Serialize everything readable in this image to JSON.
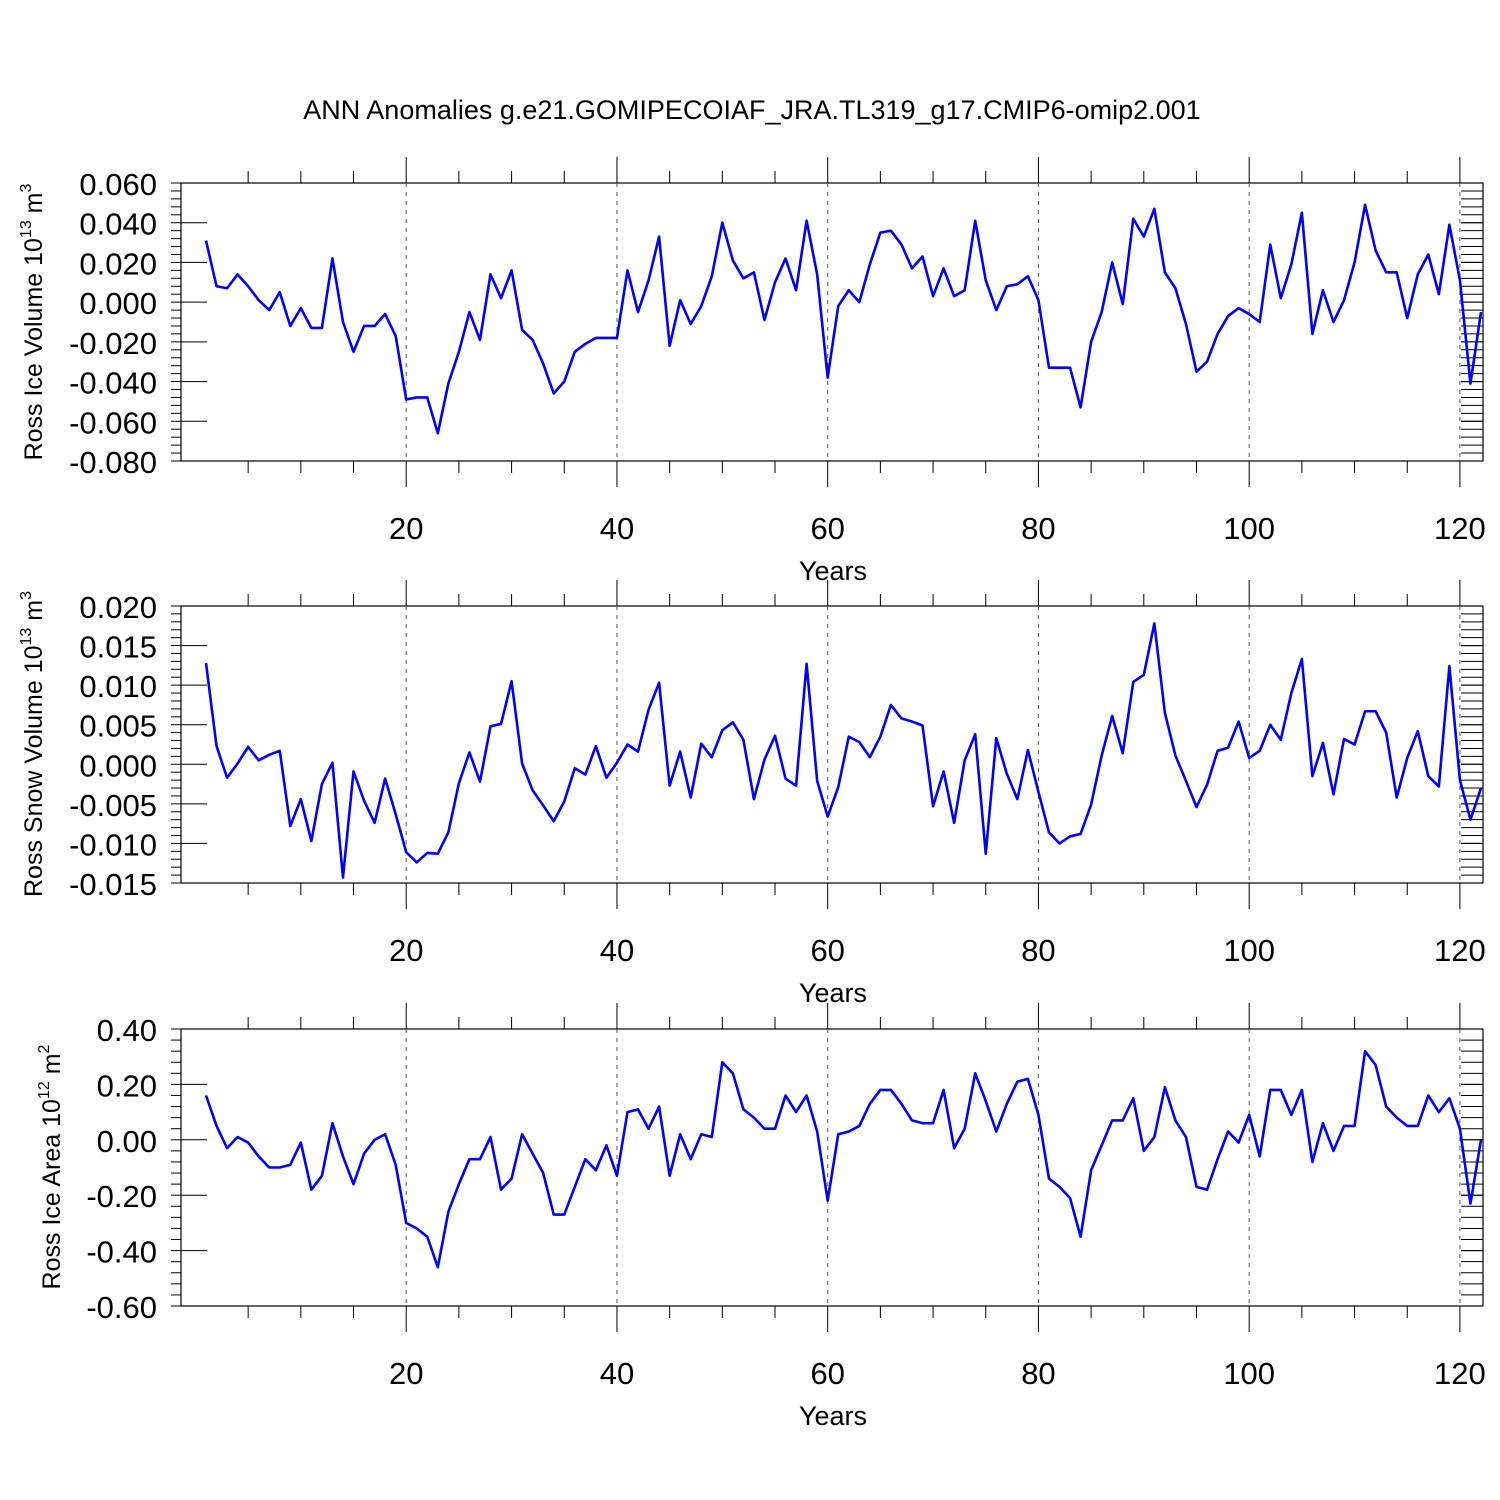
{
  "title": "ANN Anomalies g.e21.GOMIPECOIAF_JRA.TL319_g17.CMIP6-omip2.001",
  "colors": {
    "line": "#0000ff",
    "axis": "#000000",
    "grid": "#555555"
  },
  "chart_data": [
    {
      "type": "line",
      "name": "ross-ice-volume",
      "ylabel_main": "Ross Ice Volume 10",
      "ylabel_exp": "13",
      "ylabel_unit": " m",
      "ylabel_unit_exp": "3",
      "xlabel": "Years",
      "xlim": [
        1,
        122
      ],
      "ylim": [
        -0.08,
        0.06
      ],
      "xticks": [
        20,
        40,
        60,
        80,
        100,
        120
      ],
      "xtick_labels": [
        "20",
        "40",
        "60",
        "80",
        "100",
        "120"
      ],
      "yticks": [
        0.06,
        0.04,
        0.02,
        0.0,
        -0.02,
        -0.04,
        -0.06,
        -0.08
      ],
      "ytick_labels": [
        "0.060",
        "0.040",
        "0.020",
        "0.000",
        "-0.020",
        "-0.040",
        "-0.060",
        "-0.080"
      ],
      "grid_x": [
        20,
        40,
        60,
        80,
        100,
        120
      ],
      "series": [
        {
          "name": "Ross Ice Volume",
          "color": "#0000ff",
          "values": [
            0.031,
            0.008,
            0.007,
            0.014,
            0.008,
            0.001,
            -0.004,
            0.005,
            -0.012,
            -0.003,
            -0.013,
            -0.013,
            0.022,
            -0.01,
            -0.025,
            -0.012,
            -0.012,
            -0.006,
            -0.017,
            -0.049,
            -0.048,
            -0.048,
            -0.066,
            -0.041,
            -0.025,
            -0.005,
            -0.019,
            0.014,
            0.002,
            0.016,
            -0.014,
            -0.019,
            -0.031,
            -0.046,
            -0.04,
            -0.025,
            -0.021,
            -0.018,
            -0.018,
            -0.018,
            0.016,
            -0.005,
            0.011,
            0.033,
            -0.022,
            0.001,
            -0.011,
            -0.002,
            0.013,
            0.04,
            0.021,
            0.012,
            0.015,
            -0.009,
            0.01,
            0.022,
            0.006,
            0.041,
            0.014,
            -0.038,
            -0.002,
            0.006,
            0.0,
            0.019,
            0.035,
            0.036,
            0.029,
            0.017,
            0.023,
            0.003,
            0.017,
            0.003,
            0.006,
            0.041,
            0.011,
            -0.004,
            0.008,
            0.009,
            0.013,
            0.001,
            -0.033,
            -0.033,
            -0.033,
            -0.053,
            -0.02,
            -0.005,
            0.02,
            -0.001,
            0.042,
            0.033,
            0.047,
            0.015,
            0.007,
            -0.011,
            -0.035,
            -0.03,
            -0.016,
            -0.007,
            -0.003,
            -0.006,
            -0.01,
            0.029,
            0.002,
            0.019,
            0.045,
            -0.016,
            0.006,
            -0.01,
            0.001,
            0.02,
            0.049,
            0.026,
            0.015,
            0.015,
            -0.008,
            0.014,
            0.024,
            0.004,
            0.039,
            0.011,
            -0.041,
            -0.005
          ]
        }
      ]
    },
    {
      "type": "line",
      "name": "ross-snow-volume",
      "ylabel_main": "Ross Snow Volume 10",
      "ylabel_exp": "13",
      "ylabel_unit": " m",
      "ylabel_unit_exp": "3",
      "xlabel": "Years",
      "xlim": [
        1,
        122
      ],
      "ylim": [
        -0.015,
        0.02
      ],
      "xticks": [
        20,
        40,
        60,
        80,
        100,
        120
      ],
      "xtick_labels": [
        "20",
        "40",
        "60",
        "80",
        "100",
        "120"
      ],
      "yticks": [
        0.02,
        0.015,
        0.01,
        0.005,
        0.0,
        -0.005,
        -0.01,
        -0.015
      ],
      "ytick_labels": [
        "0.020",
        "0.015",
        "0.010",
        "0.005",
        "0.000",
        "-0.005",
        "-0.010",
        "-0.015"
      ],
      "grid_x": [
        20,
        40,
        60,
        80,
        100,
        120
      ],
      "series": [
        {
          "name": "Ross Snow Volume",
          "color": "#0000ff",
          "values": [
            0.0128,
            0.0023,
            -0.0017,
            0.0001,
            0.0022,
            0.0005,
            0.0012,
            0.0017,
            -0.0078,
            -0.0044,
            -0.0097,
            -0.0025,
            0.0002,
            -0.0143,
            -0.0009,
            -0.0046,
            -0.0074,
            -0.0018,
            -0.0063,
            -0.0111,
            -0.0124,
            -0.0112,
            -0.0113,
            -0.0086,
            -0.0024,
            0.0015,
            -0.0022,
            0.0048,
            0.0051,
            0.0105,
            0.0001,
            -0.0033,
            -0.0052,
            -0.0072,
            -0.0047,
            -0.0005,
            -0.0013,
            0.0023,
            -0.0017,
            0.0002,
            0.0025,
            0.0016,
            0.0069,
            0.0103,
            -0.0027,
            0.0016,
            -0.0042,
            0.0026,
            0.0009,
            0.0043,
            0.0053,
            0.0031,
            -0.0044,
            0.0006,
            0.0036,
            -0.0018,
            -0.0027,
            0.0127,
            -0.0021,
            -0.0066,
            -0.0029,
            0.0035,
            0.0028,
            0.0009,
            0.0035,
            0.0075,
            0.0058,
            0.0054,
            0.0049,
            -0.0053,
            -0.0009,
            -0.0074,
            0.0005,
            0.0038,
            -0.0113,
            0.0033,
            -0.0012,
            -0.0044,
            0.0018,
            -0.0035,
            -0.0086,
            -0.01,
            -0.0091,
            -0.0088,
            -0.0051,
            0.0011,
            0.0061,
            0.0014,
            0.0104,
            0.0113,
            0.0178,
            0.0065,
            0.0011,
            -0.0021,
            -0.0054,
            -0.0026,
            0.0017,
            0.0021,
            0.0054,
            0.0008,
            0.0017,
            0.005,
            0.0031,
            0.009,
            0.0133,
            -0.0015,
            0.0027,
            -0.0038,
            0.0032,
            0.0025,
            0.0067,
            0.0067,
            0.004,
            -0.0042,
            0.0008,
            0.0042,
            -0.0015,
            -0.0028,
            0.0124,
            -0.002,
            -0.007,
            -0.003
          ]
        }
      ]
    },
    {
      "type": "line",
      "name": "ross-ice-area",
      "ylabel_main": "Ross Ice Area 10",
      "ylabel_exp": "12",
      "ylabel_unit": " m",
      "ylabel_unit_exp": "2",
      "xlabel": "Years",
      "xlim": [
        1,
        122
      ],
      "ylim": [
        -0.6,
        0.4
      ],
      "xticks": [
        20,
        40,
        60,
        80,
        100,
        120
      ],
      "xtick_labels": [
        "20",
        "40",
        "60",
        "80",
        "100",
        "120"
      ],
      "yticks": [
        0.4,
        0.2,
        0.0,
        -0.2,
        -0.4,
        -0.6
      ],
      "ytick_labels": [
        "0.40",
        "0.20",
        "0.00",
        "-0.20",
        "-0.40",
        "-0.60"
      ],
      "grid_x": [
        20,
        40,
        60,
        80,
        100,
        120
      ],
      "series": [
        {
          "name": "Ross Ice Area",
          "color": "#0000ff",
          "values": [
            0.16,
            0.05,
            -0.03,
            0.01,
            -0.01,
            -0.06,
            -0.1,
            -0.1,
            -0.09,
            -0.01,
            -0.18,
            -0.13,
            0.06,
            -0.06,
            -0.16,
            -0.05,
            0.0,
            0.02,
            -0.09,
            -0.3,
            -0.32,
            -0.35,
            -0.46,
            -0.26,
            -0.16,
            -0.07,
            -0.07,
            0.01,
            -0.18,
            -0.14,
            0.02,
            -0.05,
            -0.12,
            -0.27,
            -0.27,
            -0.17,
            -0.07,
            -0.11,
            -0.02,
            -0.13,
            0.1,
            0.11,
            0.04,
            0.12,
            -0.13,
            0.02,
            -0.07,
            0.02,
            0.01,
            0.28,
            0.24,
            0.11,
            0.08,
            0.04,
            0.04,
            0.16,
            0.1,
            0.16,
            0.03,
            -0.22,
            0.02,
            0.03,
            0.05,
            0.13,
            0.18,
            0.18,
            0.13,
            0.07,
            0.06,
            0.06,
            0.18,
            -0.03,
            0.04,
            0.24,
            0.14,
            0.03,
            0.13,
            0.21,
            0.22,
            0.09,
            -0.14,
            -0.17,
            -0.21,
            -0.35,
            -0.11,
            -0.02,
            0.07,
            0.07,
            0.15,
            -0.04,
            0.01,
            0.19,
            0.07,
            0.01,
            -0.17,
            -0.18,
            -0.07,
            0.03,
            -0.01,
            0.09,
            -0.06,
            0.18,
            0.18,
            0.09,
            0.18,
            -0.08,
            0.06,
            -0.04,
            0.05,
            0.05,
            0.32,
            0.27,
            0.12,
            0.08,
            0.05,
            0.05,
            0.16,
            0.1,
            0.15,
            0.04,
            -0.23,
            0.0
          ]
        }
      ]
    }
  ]
}
